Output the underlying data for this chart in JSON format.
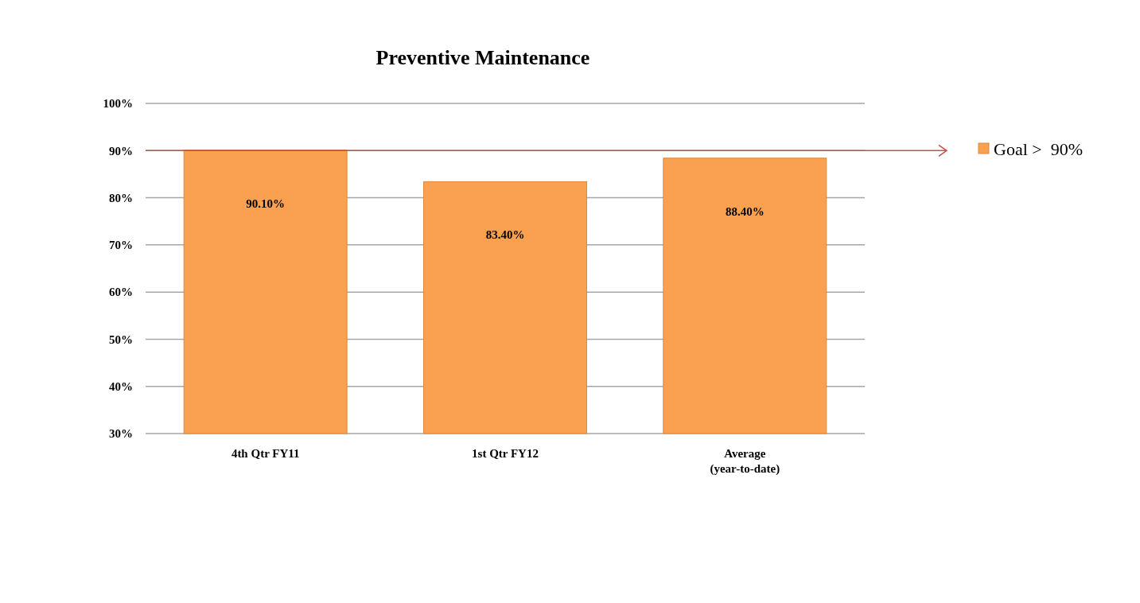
{
  "chart_data": {
    "type": "bar",
    "title": "Preventive Maintenance",
    "categories": [
      "4th Qtr FY11",
      "1st Qtr FY12",
      "Average (year-to-date)"
    ],
    "series": [
      {
        "name": "Goal >  90%",
        "color": "#f9a150",
        "values": [
          90.1,
          83.4,
          88.4
        ],
        "value_labels": [
          "90.10%",
          "83.40%",
          "88.40%"
        ]
      }
    ],
    "ylim": [
      30,
      100
    ],
    "yticks": [
      {
        "value": 30,
        "label": "30%"
      },
      {
        "value": 40,
        "label": "40%"
      },
      {
        "value": 50,
        "label": "50%"
      },
      {
        "value": 60,
        "label": "60%"
      },
      {
        "value": 70,
        "label": "70%"
      },
      {
        "value": 80,
        "label": "80%"
      },
      {
        "value": 90,
        "label": "90%"
      },
      {
        "value": 100,
        "label": "100%"
      }
    ],
    "grid": "y",
    "legend": "right",
    "ref_lines": [
      {
        "axis": "y",
        "value": 90,
        "color": "#c0504d"
      }
    ]
  }
}
